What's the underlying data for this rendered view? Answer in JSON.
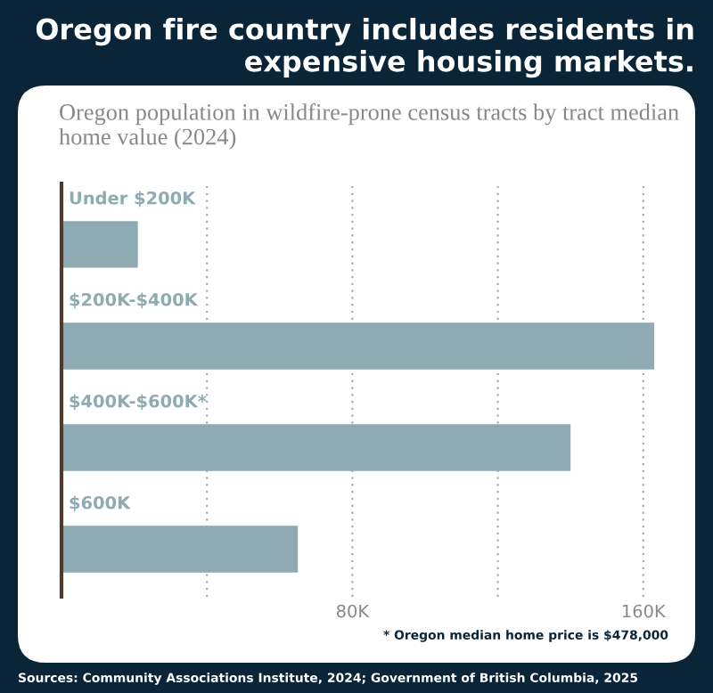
{
  "chart_data": {
    "type": "bar",
    "orientation": "horizontal",
    "title": "Oregon fire country includes residents in expensive housing markets.",
    "subtitle": "Oregon population in wildfire-prone census tracts by tract median home value (2024)",
    "categories": [
      "Under $200K",
      "$200K-$400K",
      "$400K-$600K*",
      "$600K"
    ],
    "values": [
      21000,
      163000,
      140000,
      65000
    ],
    "color": "#8eaab2",
    "xlim": [
      0,
      163000
    ],
    "xticks": [
      {
        "value": 40000,
        "label": null
      },
      {
        "value": 80000,
        "label": "80K"
      },
      {
        "value": 120000,
        "label": null
      },
      {
        "value": 160000,
        "label": "160K"
      }
    ],
    "grid": "x",
    "annotations": [
      "* Oregon median home price is $478,000",
      "Sources: Community Associations Institute, 2024; Government of British Columbia, 2025"
    ]
  }
}
